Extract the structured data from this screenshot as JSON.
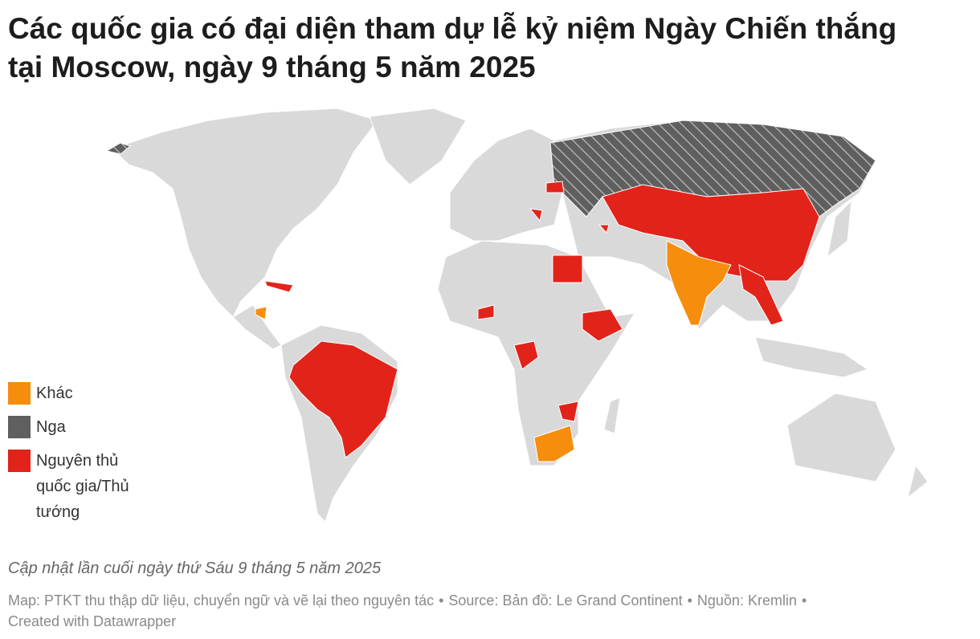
{
  "header": {
    "title": "Các quốc gia có đại diện tham dự lễ kỷ niệm Ngày Chiến thắng tại Moscow, ngày 9 tháng 5 năm 2025"
  },
  "legend": [
    {
      "label": "Khác",
      "color": "#f68d0c"
    },
    {
      "label": "Nga",
      "color": "#5f5f5f"
    },
    {
      "label": "Nguyên thủ quốc gia/Thủ tướng",
      "color": "#e2231a"
    }
  ],
  "note": "Cập nhật lần cuối ngày thứ Sáu 9 tháng 5 năm 2025",
  "footer": {
    "map": "Map: PTKT thu thập dữ liệu, chuyển ngữ và vẽ lại theo nguyên tác",
    "source": "Source: Bản đồ: Le Grand Continent",
    "source_extra": "Nguồn: Kremlin",
    "created": "Created with Datawrapper"
  }
}
